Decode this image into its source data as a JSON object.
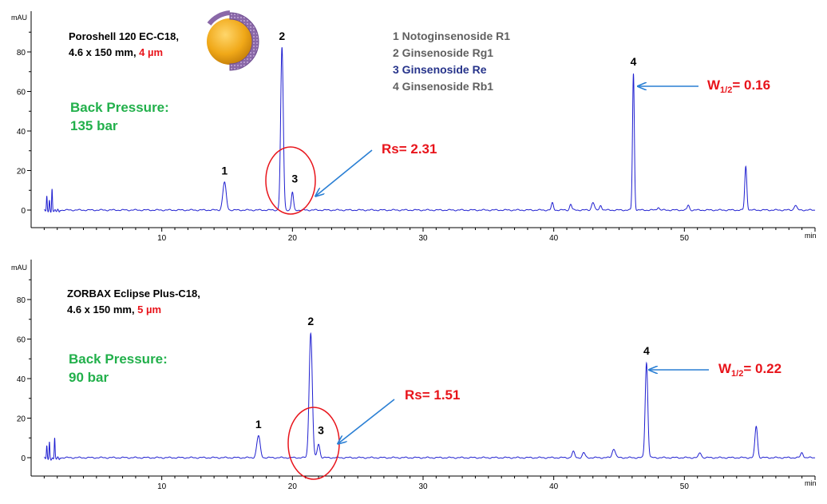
{
  "colors": {
    "trace": "#1f1fd0",
    "axis": "#000000",
    "annotation_red": "#e8141b",
    "arrow_blue": "#2a7fd4",
    "pressure_green": "#22b04b",
    "legend_gray": "#606060",
    "legend_highlight": "#27348b"
  },
  "legend": {
    "items": [
      {
        "text": "1 Notoginsenoside R1",
        "highlight": false
      },
      {
        "text": "2 Ginsenoside Rg1",
        "highlight": false
      },
      {
        "text": "3 Ginsenoside Re",
        "highlight": true
      },
      {
        "text": "4 Ginsenoside Rb1",
        "highlight": false
      }
    ]
  },
  "chart_data": [
    {
      "type": "line",
      "column": {
        "name": "Poroshell 120 EC-C18,",
        "dims": "4.6 x 150 mm, ",
        "particle": "4 µm"
      },
      "back_pressure": {
        "label": "Back Pressure:",
        "value": "135 bar"
      },
      "ylabel": "mAU",
      "xlabel": "min",
      "xlim": [
        0,
        60
      ],
      "ylim": [
        -5,
        97
      ],
      "xticks": [
        10,
        20,
        30,
        40,
        50
      ],
      "yticks": [
        0,
        20,
        40,
        60,
        80
      ],
      "baseline": 0,
      "injection_spikes": [
        {
          "rt": 1.2,
          "height": 7
        },
        {
          "rt": 1.4,
          "height": 5
        },
        {
          "rt": 1.6,
          "height": 11
        }
      ],
      "peaks": [
        {
          "id": "1",
          "rt": 14.8,
          "height": 14,
          "width": 0.13
        },
        {
          "id": "2",
          "rt": 19.2,
          "height": 82,
          "width": 0.1
        },
        {
          "id": "3",
          "rt": 20.0,
          "height": 9,
          "width": 0.08
        },
        {
          "id": "4",
          "rt": 46.1,
          "height": 69,
          "width": 0.07
        },
        {
          "id": "",
          "rt": 39.9,
          "height": 3.5,
          "width": 0.08
        },
        {
          "id": "",
          "rt": 41.3,
          "height": 3,
          "width": 0.08
        },
        {
          "id": "",
          "rt": 43.0,
          "height": 4,
          "width": 0.1
        },
        {
          "id": "",
          "rt": 43.6,
          "height": 2.5,
          "width": 0.08
        },
        {
          "id": "",
          "rt": 48.0,
          "height": 1.5,
          "width": 0.08
        },
        {
          "id": "",
          "rt": 50.3,
          "height": 2.5,
          "width": 0.08
        },
        {
          "id": "",
          "rt": 54.7,
          "height": 22,
          "width": 0.08
        },
        {
          "id": "",
          "rt": 58.5,
          "height": 2.5,
          "width": 0.1
        }
      ],
      "annotations": {
        "rs": {
          "text": "Rs= 2.31",
          "peak_id": "3"
        },
        "w_half": {
          "prefix": "W",
          "sub": "1/2",
          "suffix": "= 0.16",
          "peak_id": "4"
        }
      }
    },
    {
      "type": "line",
      "column": {
        "name": "ZORBAX Eclipse Plus-C18,",
        "dims": "4.6 x 150 mm, ",
        "particle": "5 µm"
      },
      "back_pressure": {
        "label": "Back Pressure:",
        "value": "90 bar"
      },
      "ylabel": "mAU",
      "xlabel": "min",
      "xlim": [
        0,
        60
      ],
      "ylim": [
        -5,
        97
      ],
      "xticks": [
        10,
        20,
        30,
        40,
        50
      ],
      "yticks": [
        0,
        20,
        40,
        60,
        80
      ],
      "baseline": 0,
      "injection_spikes": [
        {
          "rt": 1.2,
          "height": 6
        },
        {
          "rt": 1.4,
          "height": 8
        },
        {
          "rt": 1.8,
          "height": 10
        }
      ],
      "peaks": [
        {
          "id": "1",
          "rt": 17.4,
          "height": 11,
          "width": 0.13
        },
        {
          "id": "2",
          "rt": 21.4,
          "height": 63,
          "width": 0.12
        },
        {
          "id": "3",
          "rt": 22.0,
          "height": 7,
          "width": 0.1
        },
        {
          "id": "4",
          "rt": 47.1,
          "height": 48,
          "width": 0.1
        },
        {
          "id": "",
          "rt": 41.5,
          "height": 3,
          "width": 0.1
        },
        {
          "id": "",
          "rt": 42.3,
          "height": 2.5,
          "width": 0.1
        },
        {
          "id": "",
          "rt": 44.6,
          "height": 4.5,
          "width": 0.12
        },
        {
          "id": "",
          "rt": 51.2,
          "height": 2.5,
          "width": 0.1
        },
        {
          "id": "",
          "rt": 55.5,
          "height": 16,
          "width": 0.1
        },
        {
          "id": "",
          "rt": 59.0,
          "height": 2.5,
          "width": 0.1
        }
      ],
      "annotations": {
        "rs": {
          "text": "Rs= 1.51",
          "peak_id": "3"
        },
        "w_half": {
          "prefix": "W",
          "sub": "1/2",
          "suffix": "= 0.22",
          "peak_id": "4"
        }
      }
    }
  ]
}
